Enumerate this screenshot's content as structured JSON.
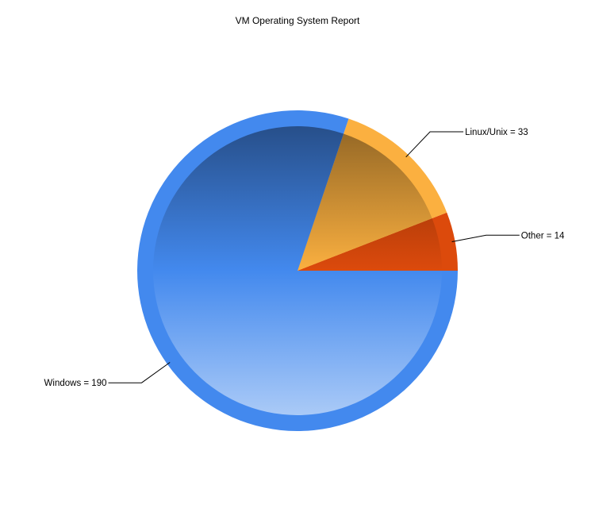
{
  "chart_data": {
    "type": "pie",
    "title": "VM Operating System Report",
    "slices": [
      {
        "name": "Other",
        "value": 14,
        "label": "Other = 14",
        "color": "#dc4a0c"
      },
      {
        "name": "Linux/Unix",
        "value": 33,
        "label": "Linux/Unix = 33",
        "color": "#fbb040"
      },
      {
        "name": "Windows",
        "value": 190,
        "label": "Windows = 190",
        "color": "#4389ee"
      }
    ],
    "start_angle_deg": 0,
    "direction": "counterclockwise"
  }
}
